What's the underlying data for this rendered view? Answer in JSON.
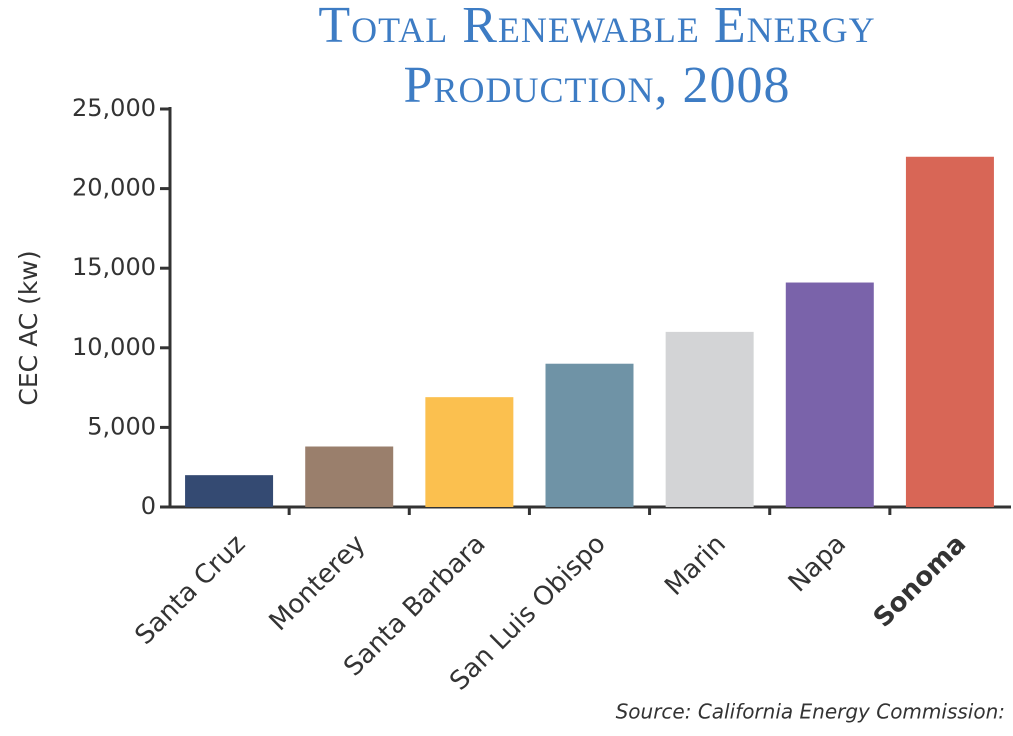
{
  "chart_data": {
    "type": "bar",
    "title": [
      "Total Renewable Energy",
      "Production, 2008"
    ],
    "y_label": "CEC AC (kw)",
    "source": "Source:  California Energy Commission:",
    "categories": [
      "Santa Cruz",
      "Monterey",
      "Santa Barbara",
      "San Luis Obispo",
      "Marin",
      "Napa",
      "Sonoma"
    ],
    "values": [
      2000,
      3800,
      6900,
      9000,
      11000,
      14100,
      22000
    ],
    "colors": [
      "#344a72",
      "#9a7f6c",
      "#fbc04f",
      "#6f93a6",
      "#d3d4d6",
      "#7a63aa",
      "#d86656"
    ],
    "ylim": [
      0,
      25000
    ],
    "yticks": [
      0,
      {
        "value": 5000,
        "label": "5,000"
      },
      {
        "value": 10000,
        "label": "10,000"
      },
      {
        "value": 15000,
        "label": "15,000"
      },
      {
        "value": 20000,
        "label": "20,000"
      },
      {
        "value": 25000,
        "label": "25,000"
      }
    ]
  }
}
